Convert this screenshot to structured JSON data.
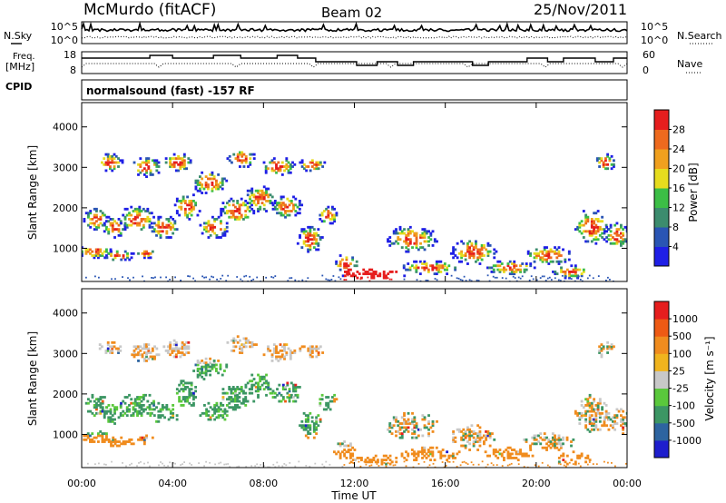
{
  "header": {
    "station": "McMurdo (fitACF)",
    "beam": "Beam 02",
    "date": "25/Nov/2011"
  },
  "strips": {
    "nsky_label": "N.Sky",
    "nsky_ticks": [
      "10^5",
      "10^0"
    ],
    "nsearch_label": "N.Search",
    "nsearch_ticks": [
      "10^5",
      "10^0"
    ],
    "freq_label_line1": "Freq.",
    "freq_label_line2": "[MHz]",
    "freq_ticks": [
      "18",
      "8"
    ],
    "nave_label": "Nave",
    "nave_ticks": [
      "60",
      "0"
    ],
    "cpid_label": "CPID",
    "cpid_text": "normalsound (fast) -157 RF"
  },
  "chart_data": [
    {
      "type": "heatmap",
      "name": "power",
      "ylabel": "Slant Range [km]",
      "xlabel": "",
      "yticks": [
        "1000",
        "2000",
        "3000",
        "4000"
      ],
      "ylim": [
        180,
        4600
      ],
      "xlim_hours": [
        0,
        24
      ],
      "colorbar": {
        "label": "Power [dB]",
        "ticks": [
          "4",
          "8",
          "12",
          "16",
          "20",
          "24",
          "28"
        ],
        "range": [
          0,
          32
        ],
        "colors": [
          "#1f1fe6",
          "#2a55b4",
          "#3c8c6e",
          "#3cbe46",
          "#e6dc1e",
          "#f0a01e",
          "#ee6a1e",
          "#e61e1e"
        ]
      }
    },
    {
      "type": "heatmap",
      "name": "velocity",
      "ylabel": "Slant Range [km]",
      "xlabel": "Time UT",
      "yticks": [
        "1000",
        "2000",
        "3000",
        "4000"
      ],
      "ylim": [
        180,
        4600
      ],
      "xticks": [
        "00:00",
        "04:00",
        "08:00",
        "12:00",
        "16:00",
        "20:00",
        "00:00"
      ],
      "xlim_hours": [
        0,
        24
      ],
      "colorbar": {
        "label": "Velocity [m s⁻¹]",
        "ticks": [
          "1000",
          "500",
          "100",
          "25",
          "-25",
          "-100",
          "-500",
          "-1000"
        ],
        "colors": [
          "#1e1ecd",
          "#2d64a0",
          "#3c9664",
          "#5ac83c",
          "#c8c8c8",
          "#f0b41e",
          "#f08c1e",
          "#ee5a14",
          "#e61e1e"
        ]
      }
    }
  ]
}
